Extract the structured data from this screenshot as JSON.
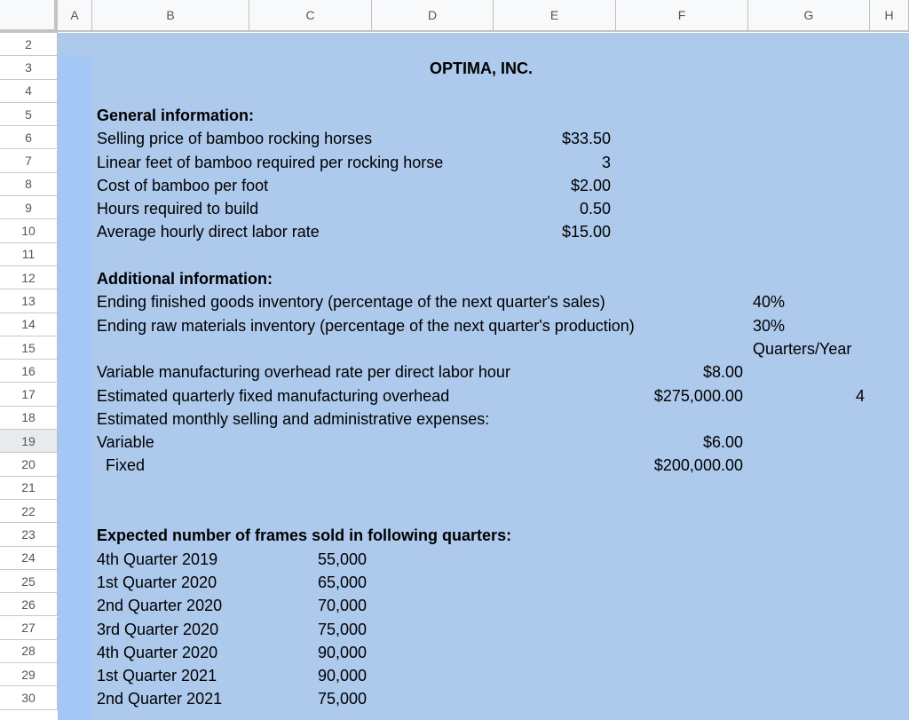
{
  "columns": [
    "A",
    "B",
    "C",
    "D",
    "E",
    "F",
    "G",
    "H"
  ],
  "rows": [
    2,
    3,
    4,
    5,
    6,
    7,
    8,
    9,
    10,
    11,
    12,
    13,
    14,
    15,
    16,
    17,
    18,
    19,
    20,
    21,
    22,
    23,
    24,
    25,
    26,
    27,
    28,
    29,
    30
  ],
  "selected_row": 19,
  "colors": {
    "fill": "#adc9ec",
    "selected_column": "#a4c8f5",
    "header_bg": "#f8f9fa"
  },
  "cells": [
    {
      "row": 3,
      "col": "center",
      "text": "OPTIMA, INC.",
      "bold": true
    },
    {
      "row": 5,
      "col": "B",
      "text": "General information:",
      "bold": true
    },
    {
      "row": 6,
      "col": "B",
      "text": "Selling price of bamboo rocking horses"
    },
    {
      "row": 6,
      "col": "E",
      "text": "$33.50",
      "align": "right"
    },
    {
      "row": 7,
      "col": "B",
      "text": "Linear feet of bamboo required per rocking horse"
    },
    {
      "row": 7,
      "col": "E",
      "text": "3",
      "align": "right"
    },
    {
      "row": 8,
      "col": "B",
      "text": "Cost of bamboo per foot"
    },
    {
      "row": 8,
      "col": "E",
      "text": "$2.00",
      "align": "right"
    },
    {
      "row": 9,
      "col": "B",
      "text": "Hours required to build"
    },
    {
      "row": 9,
      "col": "E",
      "text": "0.50",
      "align": "right"
    },
    {
      "row": 10,
      "col": "B",
      "text": "Average hourly direct labor rate"
    },
    {
      "row": 10,
      "col": "E",
      "text": "$15.00",
      "align": "right"
    },
    {
      "row": 12,
      "col": "B",
      "text": "Additional information:",
      "bold": true
    },
    {
      "row": 13,
      "col": "B",
      "text": "Ending finished goods inventory (percentage of the next quarter's sales)"
    },
    {
      "row": 13,
      "col": "G",
      "text": "40%"
    },
    {
      "row": 14,
      "col": "B",
      "text": "Ending raw materials inventory (percentage of the next quarter's production)"
    },
    {
      "row": 14,
      "col": "G",
      "text": "30%"
    },
    {
      "row": 15,
      "col": "G",
      "text": "Quarters/Year"
    },
    {
      "row": 16,
      "col": "B",
      "text": "Variable manufacturing overhead rate per direct labor hour"
    },
    {
      "row": 16,
      "col": "F",
      "text": "$8.00",
      "align": "right"
    },
    {
      "row": 17,
      "col": "B",
      "text": "Estimated quarterly fixed manufacturing overhead"
    },
    {
      "row": 17,
      "col": "F",
      "text": "$275,000.00",
      "align": "right"
    },
    {
      "row": 17,
      "col": "G",
      "text": "4",
      "align": "right"
    },
    {
      "row": 18,
      "col": "B",
      "text": "Estimated monthly selling and administrative expenses:"
    },
    {
      "row": 19,
      "col": "B",
      "text": "Variable"
    },
    {
      "row": 19,
      "col": "F",
      "text": "$6.00",
      "align": "right"
    },
    {
      "row": 20,
      "col": "B",
      "text": "  Fixed"
    },
    {
      "row": 20,
      "col": "F",
      "text": "$200,000.00",
      "align": "right"
    },
    {
      "row": 23,
      "col": "B",
      "text": "Expected number of frames sold in following quarters:",
      "bold": true
    },
    {
      "row": 24,
      "col": "B",
      "text": "4th Quarter 2019"
    },
    {
      "row": 24,
      "col": "C",
      "text": "55,000",
      "align": "right"
    },
    {
      "row": 25,
      "col": "B",
      "text": "1st Quarter 2020"
    },
    {
      "row": 25,
      "col": "C",
      "text": "65,000",
      "align": "right"
    },
    {
      "row": 26,
      "col": "B",
      "text": "2nd Quarter 2020"
    },
    {
      "row": 26,
      "col": "C",
      "text": "70,000",
      "align": "right"
    },
    {
      "row": 27,
      "col": "B",
      "text": "3rd Quarter 2020"
    },
    {
      "row": 27,
      "col": "C",
      "text": "75,000",
      "align": "right"
    },
    {
      "row": 28,
      "col": "B",
      "text": "4th Quarter 2020"
    },
    {
      "row": 28,
      "col": "C",
      "text": "90,000",
      "align": "right"
    },
    {
      "row": 29,
      "col": "B",
      "text": "1st Quarter 2021"
    },
    {
      "row": 29,
      "col": "C",
      "text": "90,000",
      "align": "right"
    },
    {
      "row": 30,
      "col": "B",
      "text": "2nd Quarter 2021"
    },
    {
      "row": 30,
      "col": "C",
      "text": "75,000",
      "align": "right"
    }
  ]
}
